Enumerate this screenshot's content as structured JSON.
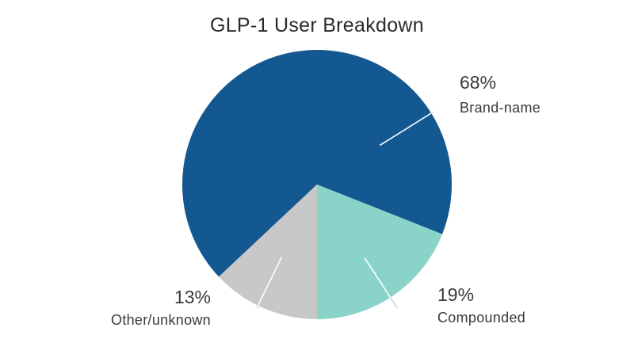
{
  "chart_data": {
    "type": "pie",
    "title": "GLP-1 User Breakdown",
    "slices": [
      {
        "label": "Brand-name",
        "value": 68,
        "display": "68%",
        "color": "#135891"
      },
      {
        "label": "Compounded",
        "value": 19,
        "display": "19%",
        "color": "#8ad3c9"
      },
      {
        "label": "Other/unknown",
        "value": 13,
        "display": "13%",
        "color": "#c8c8c8"
      }
    ],
    "legend": "none",
    "labels": "outside-with-leader-lines"
  }
}
